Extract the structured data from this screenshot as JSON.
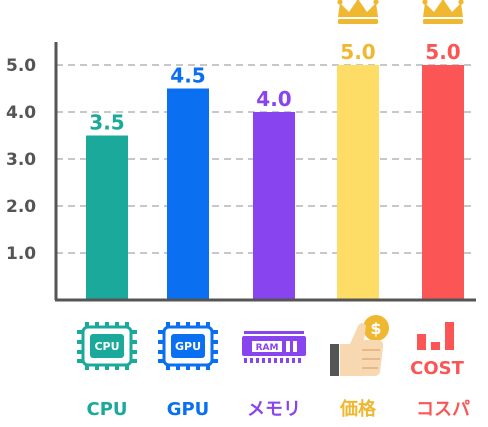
{
  "chart_data": {
    "type": "bar",
    "categories": [
      "CPU",
      "GPU",
      "メモリ",
      "価格",
      "コスパ"
    ],
    "values": [
      3.5,
      4.5,
      4.0,
      5.0,
      5.0
    ],
    "value_labels": [
      "3.5",
      "4.5",
      "4.0",
      "5.0",
      "5.0"
    ],
    "ylim": [
      0,
      5.5
    ],
    "yticks": [
      "1.0",
      "2.0",
      "3.0",
      "4.0",
      "5.0"
    ],
    "ytick_values": [
      1,
      2,
      3,
      4,
      5
    ],
    "grid": true,
    "colors": [
      "#1aa99a",
      "#0a6ff0",
      "#8844ee",
      "#fedd66",
      "#fb5555"
    ],
    "label_colors": [
      "#1aa99a",
      "#0a6ff0",
      "#8844ee",
      "#f0b830",
      "#fb5555"
    ],
    "crowned": [
      false,
      false,
      false,
      true,
      true
    ],
    "icons": [
      "cpu-chip-icon",
      "gpu-chip-icon",
      "ram-module-icon",
      "thumbs-up-coin-icon",
      "cost-bars-icon"
    ],
    "icon_texts": {
      "cpu": "CPU",
      "gpu": "GPU",
      "ram": "RAM",
      "coin": "$",
      "cost": "COST"
    }
  }
}
